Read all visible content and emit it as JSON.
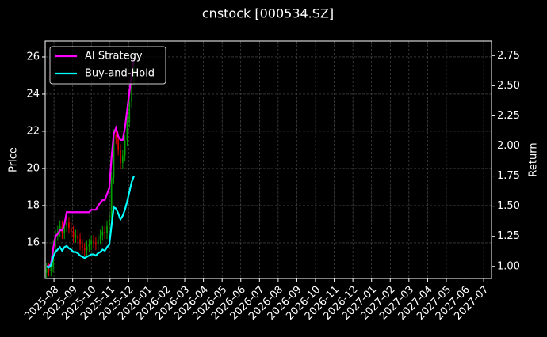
{
  "chart_data": {
    "type": "candlestick",
    "title": "cnstock [000534.SZ]",
    "ylabel": "Price",
    "y2label": "Return",
    "x": [
      -0.4,
      -0.28,
      -0.16,
      -0.04,
      0.08,
      0.2,
      0.32,
      0.44,
      0.56,
      0.68,
      0.8,
      0.92,
      1.04,
      1.16,
      1.28,
      1.4,
      1.52,
      1.64,
      1.76,
      1.88,
      2.0,
      2.12,
      2.24,
      2.36,
      2.48,
      2.6,
      2.72,
      2.84,
      2.96,
      3.08,
      3.2,
      3.32,
      3.44,
      3.56,
      3.68,
      3.8,
      3.92,
      4.04,
      4.16,
      4.28
    ],
    "open": [
      14.4,
      14.6,
      14.5,
      14.7,
      15.8,
      16.4,
      16.6,
      16.9,
      16.5,
      16.9,
      17.1,
      16.8,
      16.6,
      16.3,
      16.4,
      16.2,
      15.9,
      15.7,
      15.6,
      15.8,
      15.9,
      16.1,
      16.0,
      15.9,
      16.2,
      16.4,
      16.6,
      16.5,
      16.9,
      17.3,
      19.5,
      21.8,
      21.6,
      21.0,
      20.3,
      20.7,
      21.5,
      22.5,
      23.6,
      24.8
    ],
    "high": [
      14.9,
      14.9,
      15.0,
      16.1,
      16.7,
      16.9,
      17.2,
      17.2,
      17.2,
      17.4,
      17.4,
      17.1,
      16.9,
      16.7,
      16.7,
      16.5,
      16.2,
      16.0,
      16.1,
      16.2,
      16.4,
      16.4,
      16.3,
      16.5,
      16.7,
      16.9,
      16.9,
      17.2,
      17.6,
      19.8,
      22.1,
      22.1,
      21.9,
      21.3,
      21.0,
      21.8,
      22.8,
      23.9,
      25.1,
      25.8
    ],
    "low": [
      14.1,
      14.2,
      14.2,
      14.4,
      15.5,
      16.1,
      16.3,
      16.2,
      16.2,
      16.6,
      16.5,
      16.3,
      16.0,
      16.0,
      15.9,
      15.6,
      15.4,
      15.3,
      15.3,
      15.5,
      15.6,
      15.7,
      15.6,
      15.6,
      15.9,
      16.1,
      16.2,
      16.2,
      16.6,
      17.0,
      19.2,
      21.3,
      20.7,
      20.0,
      20.0,
      20.4,
      21.2,
      22.2,
      23.3,
      24.5
    ],
    "close": [
      14.6,
      14.5,
      14.7,
      15.8,
      16.4,
      16.6,
      16.9,
      16.5,
      16.9,
      17.1,
      16.8,
      16.6,
      16.3,
      16.4,
      16.2,
      15.9,
      15.7,
      15.6,
      15.8,
      15.9,
      16.1,
      16.0,
      15.9,
      16.2,
      16.4,
      16.6,
      16.5,
      16.9,
      17.3,
      19.5,
      21.8,
      21.6,
      21.0,
      20.3,
      20.7,
      21.5,
      22.5,
      23.6,
      24.8,
      25.5
    ],
    "up_color": "#00a000",
    "down_color": "#e00000",
    "series": [
      {
        "name": "AI Strategy",
        "color": "#ff00ff",
        "axis": "y2",
        "values": [
          1.0,
          1.0,
          1.02,
          1.15,
          1.25,
          1.27,
          1.3,
          1.3,
          1.35,
          1.45,
          1.45,
          1.45,
          1.45,
          1.45,
          1.45,
          1.45,
          1.45,
          1.45,
          1.45,
          1.45,
          1.47,
          1.47,
          1.47,
          1.5,
          1.53,
          1.55,
          1.55,
          1.6,
          1.65,
          1.9,
          2.1,
          2.15,
          2.08,
          2.05,
          2.05,
          2.15,
          2.3,
          2.45,
          2.6,
          2.72
        ]
      },
      {
        "name": "Buy-and-Hold",
        "color": "#00ffff",
        "axis": "y2",
        "values": [
          1.0,
          0.99,
          1.01,
          1.08,
          1.12,
          1.14,
          1.16,
          1.13,
          1.16,
          1.17,
          1.15,
          1.14,
          1.12,
          1.12,
          1.11,
          1.09,
          1.08,
          1.07,
          1.08,
          1.09,
          1.1,
          1.1,
          1.09,
          1.11,
          1.12,
          1.14,
          1.13,
          1.16,
          1.18,
          1.34,
          1.49,
          1.48,
          1.44,
          1.39,
          1.42,
          1.47,
          1.54,
          1.62,
          1.7,
          1.75
        ]
      }
    ],
    "xlim": [
      -0.47,
      23.42
    ],
    "xticks": [
      {
        "value": 0,
        "label": "2025-08"
      },
      {
        "value": 1,
        "label": "2025-09"
      },
      {
        "value": 2,
        "label": "2025-10"
      },
      {
        "value": 3,
        "label": "2025-11"
      },
      {
        "value": 4,
        "label": "2025-12"
      },
      {
        "value": 5,
        "label": "2026-01"
      },
      {
        "value": 6,
        "label": "2026-02"
      },
      {
        "value": 7,
        "label": "2026-03"
      },
      {
        "value": 8,
        "label": "2026-04"
      },
      {
        "value": 9,
        "label": "2026-05"
      },
      {
        "value": 10,
        "label": "2026-06"
      },
      {
        "value": 11,
        "label": "2026-07"
      },
      {
        "value": 12,
        "label": "2026-08"
      },
      {
        "value": 13,
        "label": "2026-09"
      },
      {
        "value": 14,
        "label": "2026-10"
      },
      {
        "value": 15,
        "label": "2026-11"
      },
      {
        "value": 16,
        "label": "2026-12"
      },
      {
        "value": 17,
        "label": "2027-01"
      },
      {
        "value": 18,
        "label": "2027-02"
      },
      {
        "value": 19,
        "label": "2027-03"
      },
      {
        "value": 20,
        "label": "2027-04"
      },
      {
        "value": 21,
        "label": "2027-05"
      },
      {
        "value": 22,
        "label": "2027-06"
      },
      {
        "value": 23,
        "label": "2027-07"
      }
    ],
    "ylim": [
      14.08,
      26.85
    ],
    "yticks": [
      16,
      18,
      20,
      22,
      24,
      26
    ],
    "y2lim": [
      0.9,
      2.87
    ],
    "y2ticks": [
      {
        "value": 1,
        "label": "1.00"
      },
      {
        "value": 1.25,
        "label": "1.25"
      },
      {
        "value": 1.5,
        "label": "1.50"
      },
      {
        "value": 1.75,
        "label": "1.75"
      },
      {
        "value": 2,
        "label": "2.00"
      },
      {
        "value": 2.25,
        "label": "2.25"
      },
      {
        "value": 2.5,
        "label": "2.50"
      },
      {
        "value": 2.75,
        "label": "2.75"
      }
    ],
    "grid": true,
    "legend": "upper left"
  }
}
